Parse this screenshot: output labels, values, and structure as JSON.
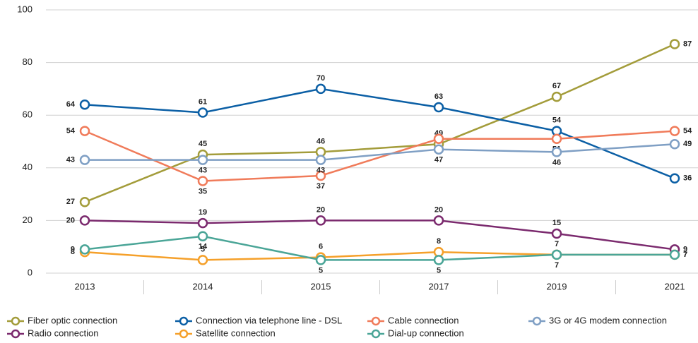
{
  "chart_data": {
    "type": "line",
    "categories": [
      "2013",
      "2014",
      "2015",
      "2017",
      "2019",
      "2021"
    ],
    "ylim": [
      0,
      100
    ],
    "yticks": [
      0,
      20,
      40,
      60,
      80,
      100
    ],
    "grid": true,
    "series": [
      {
        "name": "Fiber optic connection",
        "color": "#a39c3a",
        "values": [
          27,
          45,
          46,
          49,
          67,
          87
        ]
      },
      {
        "name": "Connection via telephone line - DSL",
        "color": "#0b5fa5",
        "values": [
          64,
          61,
          70,
          63,
          54,
          36
        ]
      },
      {
        "name": "Cable connection",
        "color": "#f07b5a",
        "values": [
          54,
          35,
          37,
          51,
          51,
          54
        ]
      },
      {
        "name": "3G or 4G modem connection",
        "color": "#7f9fc4",
        "values": [
          43,
          43,
          43,
          47,
          46,
          49
        ]
      },
      {
        "name": "Radio connection",
        "color": "#7b2a6e",
        "values": [
          20,
          19,
          20,
          20,
          15,
          9
        ]
      },
      {
        "name": "Satellite connection",
        "color": "#f5a02a",
        "values": [
          8,
          5,
          6,
          8,
          7,
          7
        ]
      },
      {
        "name": "Dial-up connection",
        "color": "#4aa597",
        "values": [
          9,
          14,
          5,
          5,
          7,
          7
        ]
      }
    ]
  }
}
